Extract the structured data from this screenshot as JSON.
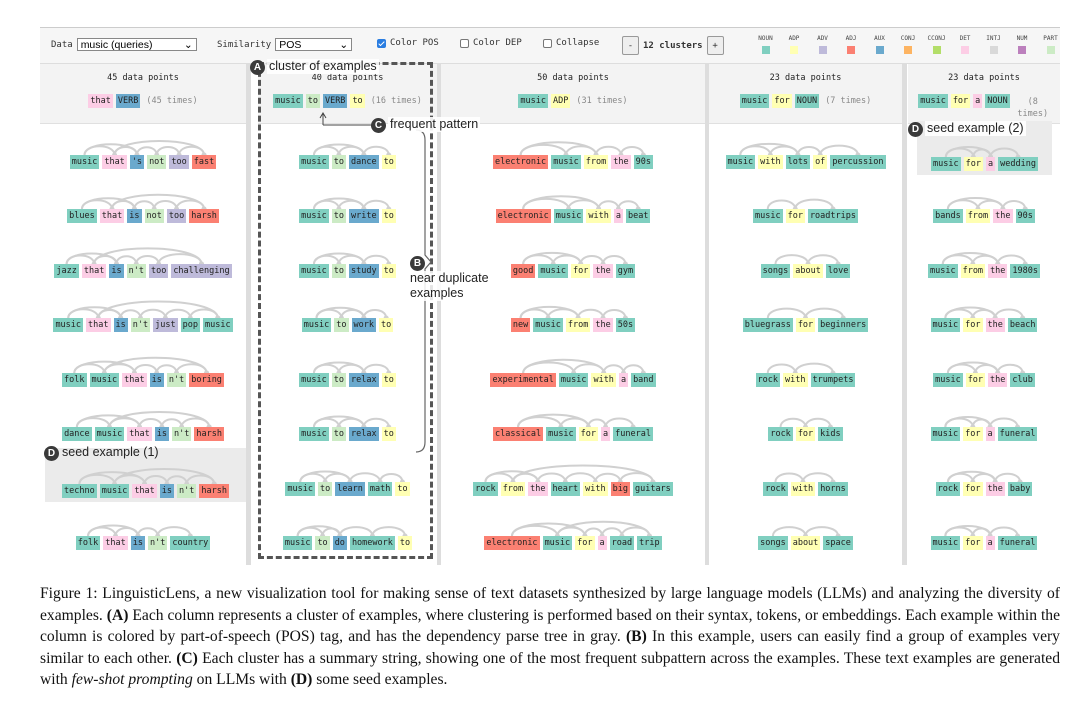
{
  "toolbar": {
    "data_label": "Data",
    "data_value": "music (queries)",
    "similarity_label": "Similarity",
    "similarity_value": "POS",
    "color_pos_label": "Color POS",
    "color_pos_checked": true,
    "color_dep_label": "Color DEP",
    "color_dep_checked": false,
    "collapse_label": "Collapse",
    "collapse_checked": false,
    "minus_label": "-",
    "plus_label": "+",
    "clusters_label": "12 clusters"
  },
  "pos_colors": {
    "NOUN": "#80cfc0",
    "ADP": "#ffffb3",
    "ADV": "#bebada",
    "ADJ": "#fb8072",
    "AUX": "#6aa9cd",
    "VERB": "#6aa9cd",
    "CONJ": "#fdb462",
    "CCONJ": "#b3de69",
    "DET": "#fccde5",
    "INTJ": "#d9d9d9",
    "NUM": "#bc80bd",
    "PART": "#ccebc5"
  },
  "legend": [
    "NOUN",
    "ADP",
    "ADV",
    "ADJ",
    "AUX",
    "CONJ",
    "CCONJ",
    "DET",
    "INTJ",
    "NUM",
    "PART"
  ],
  "columns": [
    {
      "count": "45 data points",
      "pattern": [
        [
          "that",
          "DET"
        ],
        [
          "VERB",
          "VERB"
        ]
      ],
      "times": "(45 times)",
      "seed_index": 6,
      "examples": [
        [
          [
            "music",
            "NOUN"
          ],
          [
            "that",
            "DET"
          ],
          [
            "'s",
            "AUX"
          ],
          [
            "not",
            "PART"
          ],
          [
            "too",
            "ADV"
          ],
          [
            "fast",
            "ADJ"
          ]
        ],
        [
          [
            "blues",
            "NOUN"
          ],
          [
            "that",
            "DET"
          ],
          [
            "is",
            "AUX"
          ],
          [
            "not",
            "PART"
          ],
          [
            "too",
            "ADV"
          ],
          [
            "harsh",
            "ADJ"
          ]
        ],
        [
          [
            "jazz",
            "NOUN"
          ],
          [
            "that",
            "DET"
          ],
          [
            "is",
            "AUX"
          ],
          [
            "n't",
            "PART"
          ],
          [
            "too",
            "ADV"
          ],
          [
            "challenging",
            "ADV"
          ]
        ],
        [
          [
            "music",
            "NOUN"
          ],
          [
            "that",
            "DET"
          ],
          [
            "is",
            "AUX"
          ],
          [
            "n't",
            "PART"
          ],
          [
            "just",
            "ADV"
          ],
          [
            "pop",
            "NOUN"
          ],
          [
            "music",
            "NOUN"
          ]
        ],
        [
          [
            "folk",
            "NOUN"
          ],
          [
            "music",
            "NOUN"
          ],
          [
            "that",
            "DET"
          ],
          [
            "is",
            "AUX"
          ],
          [
            "n't",
            "PART"
          ],
          [
            "boring",
            "ADJ"
          ]
        ],
        [
          [
            "dance",
            "NOUN"
          ],
          [
            "music",
            "NOUN"
          ],
          [
            "that",
            "DET"
          ],
          [
            "is",
            "AUX"
          ],
          [
            "n't",
            "PART"
          ],
          [
            "harsh",
            "ADJ"
          ]
        ],
        [
          [
            "techno",
            "NOUN"
          ],
          [
            "music",
            "NOUN"
          ],
          [
            "that",
            "DET"
          ],
          [
            "is",
            "AUX"
          ],
          [
            "n't",
            "PART"
          ],
          [
            "harsh",
            "ADJ"
          ]
        ],
        [
          [
            "folk",
            "NOUN"
          ],
          [
            "that",
            "DET"
          ],
          [
            "is",
            "AUX"
          ],
          [
            "n't",
            "PART"
          ],
          [
            "country",
            "NOUN"
          ]
        ]
      ]
    },
    {
      "count": "40 data points",
      "pattern": [
        [
          "music",
          "NOUN"
        ],
        [
          "to",
          "PART"
        ],
        [
          "VERB",
          "VERB"
        ],
        [
          "to",
          "ADP"
        ]
      ],
      "times": "(16 times)",
      "seed_index": -1,
      "examples": [
        [
          [
            "music",
            "NOUN"
          ],
          [
            "to",
            "PART"
          ],
          [
            "dance",
            "VERB"
          ],
          [
            "to",
            "ADP"
          ]
        ],
        [
          [
            "music",
            "NOUN"
          ],
          [
            "to",
            "PART"
          ],
          [
            "write",
            "VERB"
          ],
          [
            "to",
            "ADP"
          ]
        ],
        [
          [
            "music",
            "NOUN"
          ],
          [
            "to",
            "PART"
          ],
          [
            "study",
            "VERB"
          ],
          [
            "to",
            "ADP"
          ]
        ],
        [
          [
            "music",
            "NOUN"
          ],
          [
            "to",
            "PART"
          ],
          [
            "work",
            "VERB"
          ],
          [
            "to",
            "ADP"
          ]
        ],
        [
          [
            "music",
            "NOUN"
          ],
          [
            "to",
            "PART"
          ],
          [
            "relax",
            "VERB"
          ],
          [
            "to",
            "ADP"
          ]
        ],
        [
          [
            "music",
            "NOUN"
          ],
          [
            "to",
            "PART"
          ],
          [
            "relax",
            "VERB"
          ],
          [
            "to",
            "ADP"
          ]
        ],
        [
          [
            "music",
            "NOUN"
          ],
          [
            "to",
            "PART"
          ],
          [
            "learn",
            "VERB"
          ],
          [
            "math",
            "NOUN"
          ],
          [
            "to",
            "ADP"
          ]
        ],
        [
          [
            "music",
            "NOUN"
          ],
          [
            "to",
            "PART"
          ],
          [
            "do",
            "VERB"
          ],
          [
            "homework",
            "NOUN"
          ],
          [
            "to",
            "ADP"
          ]
        ]
      ]
    },
    {
      "count": "50 data points",
      "pattern": [
        [
          "music",
          "NOUN"
        ],
        [
          "ADP",
          "ADP"
        ]
      ],
      "times": "(31 times)",
      "seed_index": -1,
      "examples": [
        [
          [
            "electronic",
            "ADJ"
          ],
          [
            "music",
            "NOUN"
          ],
          [
            "from",
            "ADP"
          ],
          [
            "the",
            "DET"
          ],
          [
            "90s",
            "NOUN"
          ]
        ],
        [
          [
            "electronic",
            "ADJ"
          ],
          [
            "music",
            "NOUN"
          ],
          [
            "with",
            "ADP"
          ],
          [
            "a",
            "DET"
          ],
          [
            "beat",
            "NOUN"
          ]
        ],
        [
          [
            "good",
            "ADJ"
          ],
          [
            "music",
            "NOUN"
          ],
          [
            "for",
            "ADP"
          ],
          [
            "the",
            "DET"
          ],
          [
            "gym",
            "NOUN"
          ]
        ],
        [
          [
            "new",
            "ADJ"
          ],
          [
            "music",
            "NOUN"
          ],
          [
            "from",
            "ADP"
          ],
          [
            "the",
            "DET"
          ],
          [
            "50s",
            "NOUN"
          ]
        ],
        [
          [
            "experimental",
            "ADJ"
          ],
          [
            "music",
            "NOUN"
          ],
          [
            "with",
            "ADP"
          ],
          [
            "a",
            "DET"
          ],
          [
            "band",
            "NOUN"
          ]
        ],
        [
          [
            "classical",
            "ADJ"
          ],
          [
            "music",
            "NOUN"
          ],
          [
            "for",
            "ADP"
          ],
          [
            "a",
            "DET"
          ],
          [
            "funeral",
            "NOUN"
          ]
        ],
        [
          [
            "rock",
            "NOUN"
          ],
          [
            "from",
            "ADP"
          ],
          [
            "the",
            "DET"
          ],
          [
            "heart",
            "NOUN"
          ],
          [
            "with",
            "ADP"
          ],
          [
            "big",
            "ADJ"
          ],
          [
            "guitars",
            "NOUN"
          ]
        ],
        [
          [
            "electronic",
            "ADJ"
          ],
          [
            "music",
            "NOUN"
          ],
          [
            "for",
            "ADP"
          ],
          [
            "a",
            "DET"
          ],
          [
            "road",
            "NOUN"
          ],
          [
            "trip",
            "NOUN"
          ]
        ]
      ]
    },
    {
      "count": "23 data points",
      "pattern": [
        [
          "music",
          "NOUN"
        ],
        [
          "for",
          "ADP"
        ],
        [
          "NOUN",
          "NOUN"
        ]
      ],
      "times": "(7 times)",
      "seed_index": -1,
      "examples": [
        [
          [
            "music",
            "NOUN"
          ],
          [
            "with",
            "ADP"
          ],
          [
            "lots",
            "NOUN"
          ],
          [
            "of",
            "ADP"
          ],
          [
            "percussion",
            "NOUN"
          ]
        ],
        [
          [
            "music",
            "NOUN"
          ],
          [
            "for",
            "ADP"
          ],
          [
            "roadtrips",
            "NOUN"
          ]
        ],
        [
          [
            "songs",
            "NOUN"
          ],
          [
            "about",
            "ADP"
          ],
          [
            "love",
            "NOUN"
          ]
        ],
        [
          [
            "bluegrass",
            "NOUN"
          ],
          [
            "for",
            "ADP"
          ],
          [
            "beginners",
            "NOUN"
          ]
        ],
        [
          [
            "rock",
            "NOUN"
          ],
          [
            "with",
            "ADP"
          ],
          [
            "trumpets",
            "NOUN"
          ]
        ],
        [
          [
            "rock",
            "NOUN"
          ],
          [
            "for",
            "ADP"
          ],
          [
            "kids",
            "NOUN"
          ]
        ],
        [
          [
            "rock",
            "NOUN"
          ],
          [
            "with",
            "ADP"
          ],
          [
            "horns",
            "NOUN"
          ]
        ],
        [
          [
            "songs",
            "NOUN"
          ],
          [
            "about",
            "ADP"
          ],
          [
            "space",
            "NOUN"
          ]
        ]
      ]
    },
    {
      "count": "23 data points",
      "pattern": [
        [
          "music",
          "NOUN"
        ],
        [
          "for",
          "ADP"
        ],
        [
          "a",
          "DET"
        ],
        [
          "NOUN",
          "NOUN"
        ]
      ],
      "times": "(8 times)",
      "seed_index": 0,
      "examples": [
        [
          [
            "music",
            "NOUN"
          ],
          [
            "for",
            "ADP"
          ],
          [
            "a",
            "DET"
          ],
          [
            "wedding",
            "NOUN"
          ]
        ],
        [
          [
            "bands",
            "NOUN"
          ],
          [
            "from",
            "ADP"
          ],
          [
            "the",
            "DET"
          ],
          [
            "90s",
            "NOUN"
          ]
        ],
        [
          [
            "music",
            "NOUN"
          ],
          [
            "from",
            "ADP"
          ],
          [
            "the",
            "DET"
          ],
          [
            "1980s",
            "NOUN"
          ]
        ],
        [
          [
            "music",
            "NOUN"
          ],
          [
            "for",
            "ADP"
          ],
          [
            "the",
            "DET"
          ],
          [
            "beach",
            "NOUN"
          ]
        ],
        [
          [
            "music",
            "NOUN"
          ],
          [
            "for",
            "ADP"
          ],
          [
            "the",
            "DET"
          ],
          [
            "club",
            "NOUN"
          ]
        ],
        [
          [
            "music",
            "NOUN"
          ],
          [
            "for",
            "ADP"
          ],
          [
            "a",
            "DET"
          ],
          [
            "funeral",
            "NOUN"
          ]
        ],
        [
          [
            "rock",
            "NOUN"
          ],
          [
            "for",
            "ADP"
          ],
          [
            "the",
            "DET"
          ],
          [
            "baby",
            "NOUN"
          ]
        ],
        [
          [
            "music",
            "NOUN"
          ],
          [
            "for",
            "ADP"
          ],
          [
            "a",
            "DET"
          ],
          [
            "funeral",
            "NOUN"
          ]
        ]
      ]
    }
  ],
  "annotations": {
    "a_badge": "A",
    "a_text": "cluster of examples",
    "b_badge": "B",
    "b_text_1": "near duplicate",
    "b_text_2": "examples",
    "c_badge": "C",
    "c_text": "frequent pattern",
    "d1_badge": "D",
    "d1_text": "seed example (1)",
    "d2_badge": "D",
    "d2_text": "seed example (2)"
  },
  "caption": [
    {
      "text": "Figure 1: LinguisticLens, a new visualization tool for making sense of text datasets synthesized by large language models (LLMs) and analyzing the diversity of examples. ",
      "style": "normal"
    },
    {
      "text": "(A)",
      "style": "bold"
    },
    {
      "text": " Each column represents a cluster of examples, where clustering is performed based on their syntax, tokens, or embeddings. Each example within the column is colored by part-of-speech (POS) tag, and has the dependency parse tree in gray. ",
      "style": "normal"
    },
    {
      "text": "(B)",
      "style": "bold"
    },
    {
      "text": " In this example, users can easily find a group of examples very similar to each other. ",
      "style": "normal"
    },
    {
      "text": "(C)",
      "style": "bold"
    },
    {
      "text": " Each cluster has a summary string, showing one of the most frequent subpattern across the examples. These text examples are generated with ",
      "style": "normal"
    },
    {
      "text": "few-shot prompting",
      "style": "italic"
    },
    {
      "text": " on LLMs with ",
      "style": "normal"
    },
    {
      "text": "(D)",
      "style": "bold"
    },
    {
      "text": " some seed examples.",
      "style": "normal"
    }
  ]
}
